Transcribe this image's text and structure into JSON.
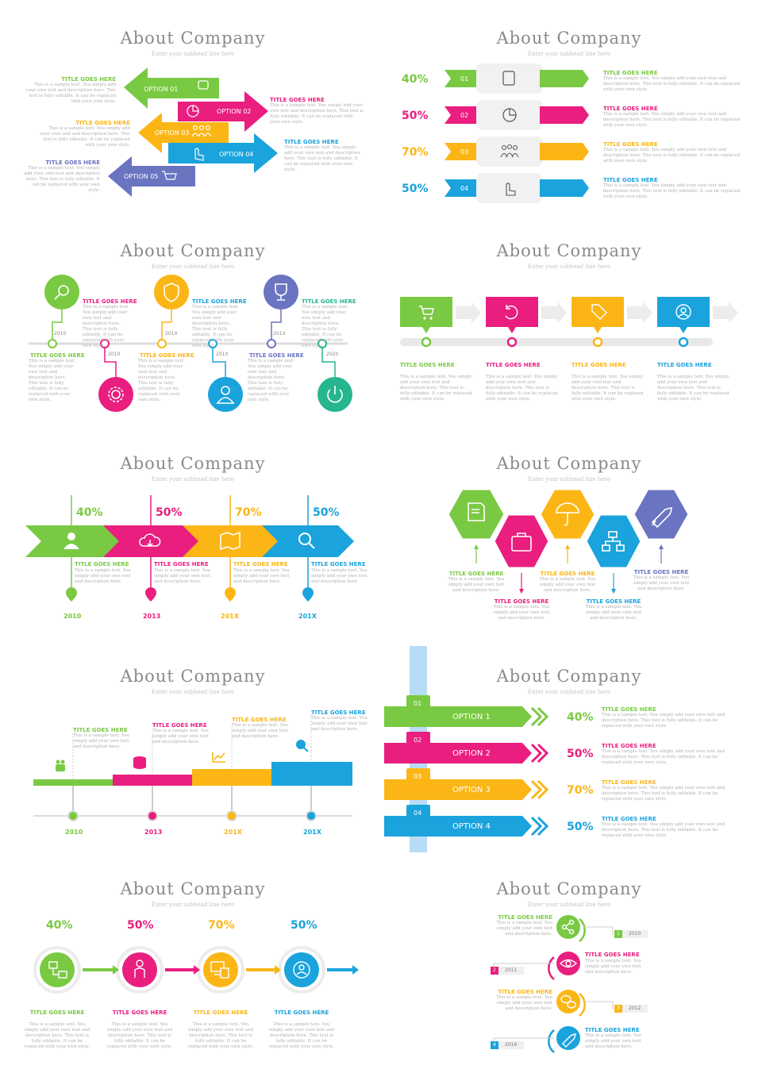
{
  "colors": {
    "green": "#7ac943",
    "pink": "#e91e7f",
    "yellow": "#fbb616",
    "blue": "#1aa3dc",
    "purple": "#6a74c1",
    "teal": "#26b58f",
    "grey": "#b3b3b3"
  },
  "common": {
    "title": "About Company",
    "subtitle": "Enter your subhead line here",
    "title_goes_here": "TITLE GOES HERE",
    "body_long": "This is a sample text. You simply add your own text and description here. This text is fully editable. It can be replaced with your own style.",
    "body_short": "This is a sample text. You simply add your own text and description here."
  },
  "slide1": {
    "options": [
      "OPTION 01",
      "OPTION 02",
      "OPTION 03",
      "OPTION 04",
      "OPTION 05"
    ],
    "icons": [
      "chat-icon",
      "pie-chart-icon",
      "team-icon",
      "click-icon",
      "cart-icon"
    ]
  },
  "slide2": {
    "percents": [
      "40%",
      "50%",
      "70%",
      "50%"
    ],
    "numbers": [
      "01",
      "02",
      "03",
      "04"
    ],
    "icons": [
      "chat-icon",
      "pie-chart-icon",
      "team-icon",
      "click-icon"
    ]
  },
  "slide3": {
    "years": [
      "2010",
      "2010",
      "201X",
      "201X",
      "201X",
      "2020"
    ],
    "icons": [
      "search-icon",
      "gear-icon",
      "shield-icon",
      "user-icon",
      "trophy-icon",
      "power-icon"
    ]
  },
  "slide4": {
    "icons": [
      "cart-icon",
      "refresh-icon",
      "tag-icon",
      "target-user-icon"
    ]
  },
  "slide5": {
    "percents": [
      "40%",
      "50%",
      "70%",
      "50%"
    ],
    "years": [
      "2010",
      "2013",
      "201X",
      "201X"
    ],
    "icons": [
      "user-icon",
      "cloud-icon",
      "map-icon",
      "search-icon"
    ]
  },
  "slide6": {
    "icons": [
      "certificate-icon",
      "briefcase-icon",
      "umbrella-icon",
      "network-icon",
      "rocket-icon"
    ]
  },
  "slide7": {
    "years": [
      "2010",
      "2013",
      "201X",
      "201X"
    ],
    "icons": [
      "team-icon",
      "database-icon",
      "chart-icon",
      "globe-search-icon"
    ]
  },
  "slide8": {
    "numbers": [
      "01",
      "02",
      "03",
      "04"
    ],
    "options": [
      "OPTION 1",
      "OPTION 2",
      "OPTION 3",
      "OPTION 4"
    ],
    "percents": [
      "40%",
      "50%",
      "70%",
      "50%"
    ]
  },
  "slide9": {
    "percents": [
      "40%",
      "50%",
      "70%",
      "50%"
    ],
    "icons": [
      "network-icon",
      "person-icon",
      "devices-icon",
      "target-user-icon"
    ]
  },
  "slide10": {
    "years": [
      {
        "num": "1",
        "year": "2010"
      },
      {
        "num": "2",
        "year": "2011"
      },
      {
        "num": "3",
        "year": "2012"
      },
      {
        "num": "4",
        "year": "2016"
      }
    ],
    "icons": [
      "share-icon",
      "eye-icon",
      "chat-icon",
      "rocket-icon"
    ]
  }
}
